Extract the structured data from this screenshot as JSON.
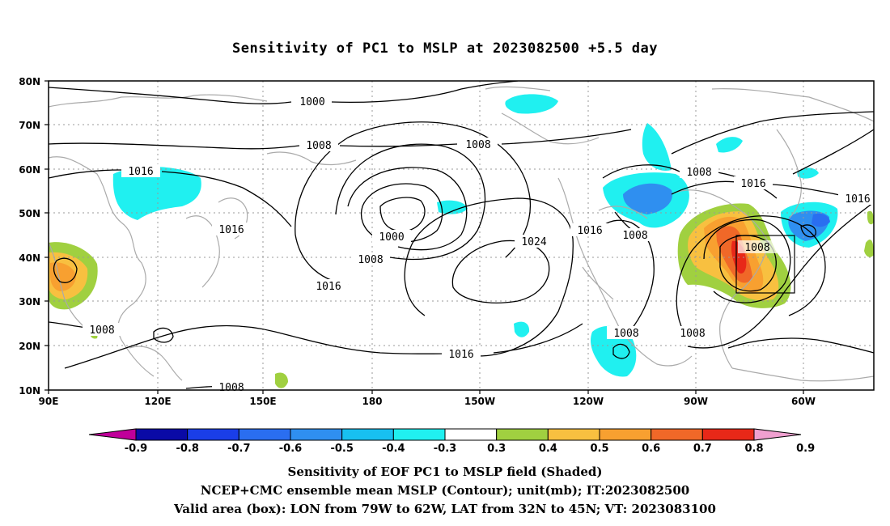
{
  "title": "Sensitivity of PC1 to MSLP at 2023082500 +5.5 day",
  "lat_labels": [
    "10N",
    "20N",
    "30N",
    "40N",
    "50N",
    "60N",
    "70N",
    "80N"
  ],
  "lon_labels": [
    "90E",
    "120E",
    "150E",
    "180",
    "150W",
    "120W",
    "90W",
    "60W"
  ],
  "contour_labels": {
    "c1000a": "1000",
    "c1008a": "1008",
    "c1008b": "1008",
    "c1016a": "1016",
    "c1016b": "1016",
    "c1000b": "1000",
    "c1008c": "1008",
    "c1016c": "1016",
    "c1024": "1024",
    "c1016d": "1016",
    "c1008d": "1008",
    "c1016e": "1016",
    "c1016f": "1016",
    "c1008e": "1008",
    "c1008f": "1008",
    "c1008g": "1008",
    "c1008h": "1008",
    "c1008i": "1008",
    "c1008j": "1008",
    "c1016g": "1016"
  },
  "colorbar": {
    "labels": [
      "-0.9",
      "-0.8",
      "-0.7",
      "-0.6",
      "-0.5",
      "-0.4",
      "-0.3",
      "0.3",
      "0.4",
      "0.5",
      "0.6",
      "0.7",
      "0.8",
      "0.9"
    ],
    "colors": [
      "#c0009a",
      "#0a0aa6",
      "#1a3ee8",
      "#2a6ef0",
      "#2f8ff0",
      "#18c0f0",
      "#20f0f0",
      "#ffffff",
      "#a0d040",
      "#f8c040",
      "#f8a030",
      "#f06828",
      "#e82818",
      "#f0a0d0"
    ]
  },
  "caption1": "Sensitivity of EOF PC1 to MSLP field (Shaded)",
  "caption2": "NCEP+CMC ensemble mean MSLP (Contour); unit(mb); IT:2023082500",
  "caption3": "Valid area (box): LON from 79W to 62W, LAT from 32N to 45N; VT: 2023083100"
}
